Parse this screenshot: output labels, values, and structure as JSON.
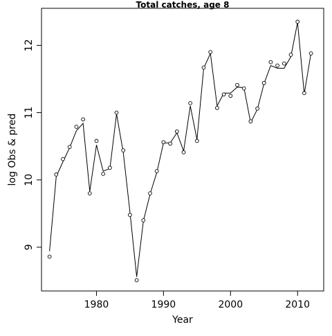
{
  "chart_data": {
    "type": "line",
    "title": "Total catches, age 8",
    "xlabel": "Year",
    "ylabel": "log Obs & pred",
    "xlim": [
      1971.8,
      2013.9
    ],
    "ylim": [
      8.35,
      12.55
    ],
    "xticks": [
      1980,
      1990,
      2000,
      2010
    ],
    "yticks": [
      9,
      10,
      11,
      12
    ],
    "grid": false,
    "series": [
      {
        "role": "observed",
        "marker": "circle",
        "x": [
          1973,
          1974,
          1975,
          1976,
          1977,
          1978,
          1979,
          1980,
          1981,
          1982,
          1983,
          1984,
          1985,
          1986,
          1987,
          1988,
          1989,
          1990,
          1991,
          1992,
          1993,
          1994,
          1995,
          1996,
          1997,
          1998,
          1999,
          2000,
          2001,
          2002,
          2003,
          2004,
          2005,
          2006,
          2007,
          2008,
          2009,
          2010,
          2011,
          2012
        ],
        "values": [
          8.86,
          10.08,
          10.31,
          10.49,
          10.79,
          10.9,
          9.8,
          10.58,
          10.09,
          10.18,
          11.0,
          10.44,
          9.48,
          8.51,
          9.4,
          9.8,
          10.13,
          10.56,
          10.54,
          10.72,
          10.41,
          11.14,
          10.58,
          11.67,
          11.9,
          11.07,
          11.27,
          11.25,
          11.41,
          11.36,
          10.87,
          11.06,
          11.44,
          11.75,
          11.7,
          11.73,
          11.86,
          12.35,
          11.29,
          11.88
        ]
      },
      {
        "role": "predicted",
        "marker": "line",
        "x": [
          1973,
          1974,
          1975,
          1976,
          1977,
          1978,
          1979,
          1980,
          1981,
          1982,
          1983,
          1984,
          1985,
          1986,
          1987,
          1988,
          1989,
          1990,
          1991,
          1992,
          1993,
          1994,
          1995,
          1996,
          1997,
          1998,
          1999,
          2000,
          2001,
          2002,
          2003,
          2004,
          2005,
          2006,
          2007,
          2008,
          2009,
          2010,
          2011,
          2012
        ],
        "values": [
          8.94,
          10.05,
          10.27,
          10.48,
          10.73,
          10.84,
          9.83,
          10.52,
          10.13,
          10.17,
          10.98,
          10.41,
          9.52,
          8.56,
          9.39,
          9.79,
          10.11,
          10.55,
          10.55,
          10.7,
          10.43,
          11.1,
          10.6,
          11.66,
          11.88,
          11.1,
          11.29,
          11.29,
          11.38,
          11.37,
          10.85,
          11.05,
          11.43,
          11.7,
          11.66,
          11.66,
          11.83,
          12.34,
          11.28,
          11.88
        ]
      }
    ]
  }
}
